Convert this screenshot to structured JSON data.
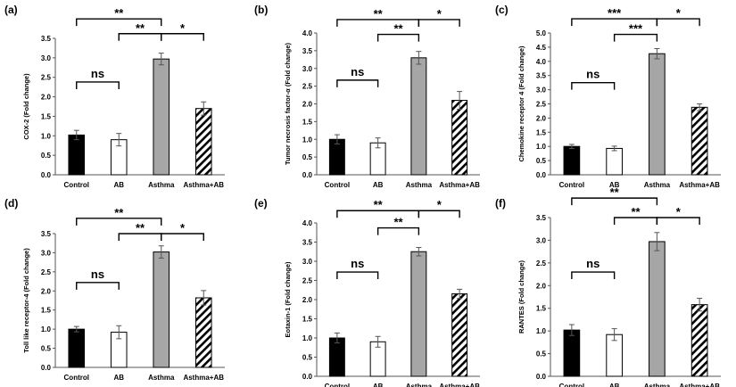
{
  "categories": [
    "Control",
    "AB",
    "Asthma",
    "Asthma+AB"
  ],
  "chart_data": [
    {
      "type": "bar",
      "label": "(a)",
      "ylabel": "COX-2 (Fold change)",
      "ylim": [
        0,
        3.5
      ],
      "yticks": [
        "0.0",
        "0.5",
        "1.0",
        "1.5",
        "2.0",
        "2.5",
        "3.0",
        "3.5"
      ],
      "values": [
        1.02,
        0.9,
        2.97,
        1.7
      ],
      "errors": [
        0.12,
        0.16,
        0.15,
        0.17
      ],
      "sig": [
        {
          "from": 0,
          "to": 2,
          "level": 4.0,
          "label": "**"
        },
        {
          "from": 1,
          "to": 2,
          "level": 3.62,
          "label": "**"
        },
        {
          "from": 2,
          "to": 3,
          "level": 3.62,
          "label": "*"
        },
        {
          "from": 0,
          "to": 1,
          "level": 2.38,
          "label": "ns"
        }
      ]
    },
    {
      "type": "bar",
      "label": "(b)",
      "ylabel": "Tumor necrosis factor-α (Fold change)",
      "ylim": [
        0,
        4.0
      ],
      "yticks": [
        "0.0",
        "0.5",
        "1.0",
        "1.5",
        "2.0",
        "2.5",
        "3.0",
        "3.5",
        "4.0"
      ],
      "values": [
        1.0,
        0.9,
        3.3,
        2.1
      ],
      "errors": [
        0.13,
        0.14,
        0.18,
        0.25
      ],
      "sig": [
        {
          "from": 0,
          "to": 2,
          "level": 4.38,
          "label": "**"
        },
        {
          "from": 1,
          "to": 2,
          "level": 3.96,
          "label": "**"
        },
        {
          "from": 2,
          "to": 3,
          "level": 4.38,
          "label": "*"
        },
        {
          "from": 0,
          "to": 1,
          "level": 2.67,
          "label": "ns"
        }
      ]
    },
    {
      "type": "bar",
      "label": "(c)",
      "ylabel": "Chemokine receptor 4 (Fold change)",
      "ylim": [
        0,
        5.0
      ],
      "yticks": [
        "0.0",
        "0.5",
        "1.0",
        "1.5",
        "2.0",
        "2.5",
        "3.0",
        "3.5",
        "4.0",
        "4.5",
        "5.0"
      ],
      "values": [
        1.0,
        0.93,
        4.27,
        2.38
      ],
      "errors": [
        0.07,
        0.08,
        0.18,
        0.12
      ],
      "sig": [
        {
          "from": 0,
          "to": 2,
          "level": 5.5,
          "label": "***"
        },
        {
          "from": 1,
          "to": 2,
          "level": 4.95,
          "label": "***"
        },
        {
          "from": 2,
          "to": 3,
          "level": 5.5,
          "label": "*"
        },
        {
          "from": 0,
          "to": 1,
          "level": 3.25,
          "label": "ns"
        }
      ]
    },
    {
      "type": "bar",
      "label": "(d)",
      "ylabel": "Toll like receptor-4 (Fold change)",
      "ylim": [
        0,
        3.5
      ],
      "yticks": [
        "0.0",
        "0.5",
        "1.0",
        "1.5",
        "2.0",
        "2.5",
        "3.0",
        "3.5"
      ],
      "values": [
        1.0,
        0.92,
        3.02,
        1.82
      ],
      "errors": [
        0.07,
        0.17,
        0.16,
        0.19
      ],
      "sig": [
        {
          "from": 0,
          "to": 2,
          "level": 3.9,
          "label": "**"
        },
        {
          "from": 1,
          "to": 2,
          "level": 3.5,
          "label": "**"
        },
        {
          "from": 2,
          "to": 3,
          "level": 3.5,
          "label": "*"
        },
        {
          "from": 0,
          "to": 1,
          "level": 2.22,
          "label": "ns"
        }
      ]
    },
    {
      "type": "bar",
      "label": "(e)",
      "ylabel": "Eotaxin-1 (Fold change)",
      "ylim": [
        0,
        4.0
      ],
      "yticks": [
        "0.0",
        "0.5",
        "1.0",
        "1.5",
        "2.0",
        "2.5",
        "3.0",
        "3.5",
        "4.0"
      ],
      "values": [
        1.0,
        0.9,
        3.25,
        2.15
      ],
      "errors": [
        0.13,
        0.14,
        0.11,
        0.12
      ],
      "sig": [
        {
          "from": 0,
          "to": 2,
          "level": 4.32,
          "label": "**"
        },
        {
          "from": 1,
          "to": 2,
          "level": 3.87,
          "label": "**"
        },
        {
          "from": 2,
          "to": 3,
          "level": 4.32,
          "label": "*"
        },
        {
          "from": 0,
          "to": 1,
          "level": 2.72,
          "label": "ns"
        }
      ]
    },
    {
      "type": "bar",
      "label": "(f)",
      "ylabel": "RANTES (Fold change)",
      "ylim": [
        0,
        3.5
      ],
      "yticks": [
        "0.0",
        "0.5",
        "1.0",
        "1.5",
        "2.0",
        "2.5",
        "3.0",
        "3.5"
      ],
      "values": [
        1.02,
        0.92,
        2.97,
        1.58
      ],
      "errors": [
        0.12,
        0.13,
        0.2,
        0.14
      ],
      "sig": [
        {
          "from": 0,
          "to": 2,
          "level": 3.93,
          "label": "**"
        },
        {
          "from": 1,
          "to": 2,
          "level": 3.5,
          "label": "**"
        },
        {
          "from": 2,
          "to": 3,
          "level": 3.5,
          "label": "*"
        },
        {
          "from": 0,
          "to": 1,
          "level": 2.3,
          "label": "ns"
        }
      ]
    }
  ]
}
